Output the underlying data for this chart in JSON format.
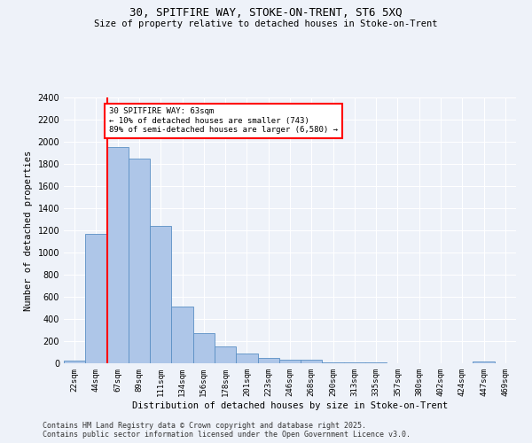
{
  "title1": "30, SPITFIRE WAY, STOKE-ON-TRENT, ST6 5XQ",
  "title2": "Size of property relative to detached houses in Stoke-on-Trent",
  "xlabel": "Distribution of detached houses by size in Stoke-on-Trent",
  "ylabel": "Number of detached properties",
  "categories": [
    "22sqm",
    "44sqm",
    "67sqm",
    "89sqm",
    "111sqm",
    "134sqm",
    "156sqm",
    "178sqm",
    "201sqm",
    "223sqm",
    "246sqm",
    "268sqm",
    "290sqm",
    "313sqm",
    "335sqm",
    "357sqm",
    "380sqm",
    "402sqm",
    "424sqm",
    "447sqm",
    "469sqm"
  ],
  "values": [
    25,
    1170,
    1950,
    1850,
    1240,
    510,
    270,
    155,
    90,
    45,
    35,
    30,
    12,
    8,
    5,
    3,
    2,
    1,
    1,
    15,
    0
  ],
  "bar_color": "#aec6e8",
  "bar_edge_color": "#5a8fc4",
  "red_line_x": 1.5,
  "annotation_text": "30 SPITFIRE WAY: 63sqm\n← 10% of detached houses are smaller (743)\n89% of semi-detached houses are larger (6,580) →",
  "annotation_box_color": "white",
  "annotation_box_edge_color": "red",
  "red_line_color": "red",
  "ylim": [
    0,
    2400
  ],
  "yticks": [
    0,
    200,
    400,
    600,
    800,
    1000,
    1200,
    1400,
    1600,
    1800,
    2000,
    2200,
    2400
  ],
  "background_color": "#eef2f9",
  "grid_color": "white",
  "footer1": "Contains HM Land Registry data © Crown copyright and database right 2025.",
  "footer2": "Contains public sector information licensed under the Open Government Licence v3.0."
}
